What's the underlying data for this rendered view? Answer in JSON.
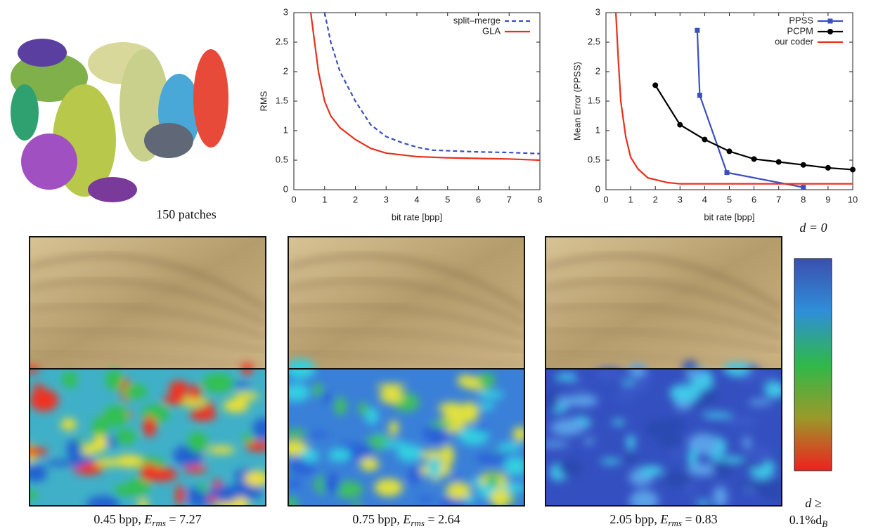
{
  "chart_data": [
    {
      "type": "line",
      "ylabel": "RMS",
      "xlabel": "bit rate [bpp]",
      "xlim": [
        0,
        8
      ],
      "ylim": [
        0,
        3
      ],
      "xticks": [
        0,
        1,
        2,
        3,
        4,
        5,
        6,
        7,
        8
      ],
      "yticks": [
        0,
        0.5,
        1,
        1.5,
        2,
        2.5,
        3
      ],
      "legend": "upper right",
      "series": [
        {
          "name": "split–merge",
          "color": "#3a4fc0",
          "linestyle": "dashed",
          "marker": null,
          "x": [
            1,
            1.2,
            1.5,
            2,
            2.5,
            3,
            3.5,
            4,
            4.5,
            5,
            6,
            7,
            8
          ],
          "values": [
            3,
            2.5,
            2.0,
            1.5,
            1.1,
            0.9,
            0.8,
            0.72,
            0.67,
            0.66,
            0.64,
            0.63,
            0.61
          ]
        },
        {
          "name": "GLA",
          "color": "#e8301c",
          "linestyle": "solid",
          "marker": null,
          "x": [
            0.55,
            0.7,
            0.8,
            1,
            1.2,
            1.5,
            2,
            2.5,
            3,
            4,
            5,
            6,
            7,
            8
          ],
          "values": [
            3,
            2.4,
            2.0,
            1.5,
            1.25,
            1.05,
            0.85,
            0.7,
            0.62,
            0.56,
            0.54,
            0.53,
            0.52,
            0.5
          ]
        }
      ]
    },
    {
      "type": "line",
      "ylabel": "Mean Error (PPSS)",
      "xlabel": "bit rate [bpp]",
      "xlim": [
        0,
        10
      ],
      "ylim": [
        0,
        3
      ],
      "xticks": [
        0,
        1,
        2,
        3,
        4,
        5,
        6,
        7,
        8,
        9,
        10
      ],
      "yticks": [
        0,
        0.5,
        1,
        1.5,
        2,
        2.5,
        3
      ],
      "legend": "upper right",
      "series": [
        {
          "name": "PPSS",
          "color": "#3a4fc0",
          "linestyle": "solid",
          "marker": "square",
          "x": [
            3.7,
            3.8,
            4.9,
            8
          ],
          "values": [
            2.7,
            1.6,
            0.29,
            0.04
          ]
        },
        {
          "name": "PCPM",
          "color": "#000000",
          "linestyle": "solid",
          "marker": "circle",
          "x": [
            2,
            3,
            4,
            5,
            6,
            7,
            8,
            9,
            10
          ],
          "values": [
            1.77,
            1.1,
            0.85,
            0.65,
            0.52,
            0.47,
            0.42,
            0.37,
            0.34
          ]
        },
        {
          "name": "our coder",
          "color": "#e8301c",
          "linestyle": "solid",
          "marker": null,
          "x": [
            0.4,
            0.5,
            0.6,
            0.8,
            1,
            1.3,
            1.7,
            2.5,
            3,
            10
          ],
          "values": [
            3,
            2.2,
            1.5,
            0.9,
            0.55,
            0.35,
            0.2,
            0.12,
            0.1,
            0.1
          ]
        }
      ]
    }
  ],
  "dragon_caption": "150 patches",
  "panels": [
    {
      "rate": "0.45 bpp, ",
      "symbol": "E",
      "subscript": "rms",
      "equation": " = 7.27"
    },
    {
      "rate": "0.75 bpp, ",
      "symbol": "E",
      "subscript": "rms",
      "equation": " = 2.64"
    },
    {
      "rate": "2.05 bpp, ",
      "symbol": "E",
      "subscript": "rms",
      "equation": " = 0.83"
    }
  ],
  "colorbar": {
    "top": "d = 0",
    "bottom_line1": "d ≥",
    "bottom_line2": "0.1%d",
    "bottom_subscript": "B"
  }
}
